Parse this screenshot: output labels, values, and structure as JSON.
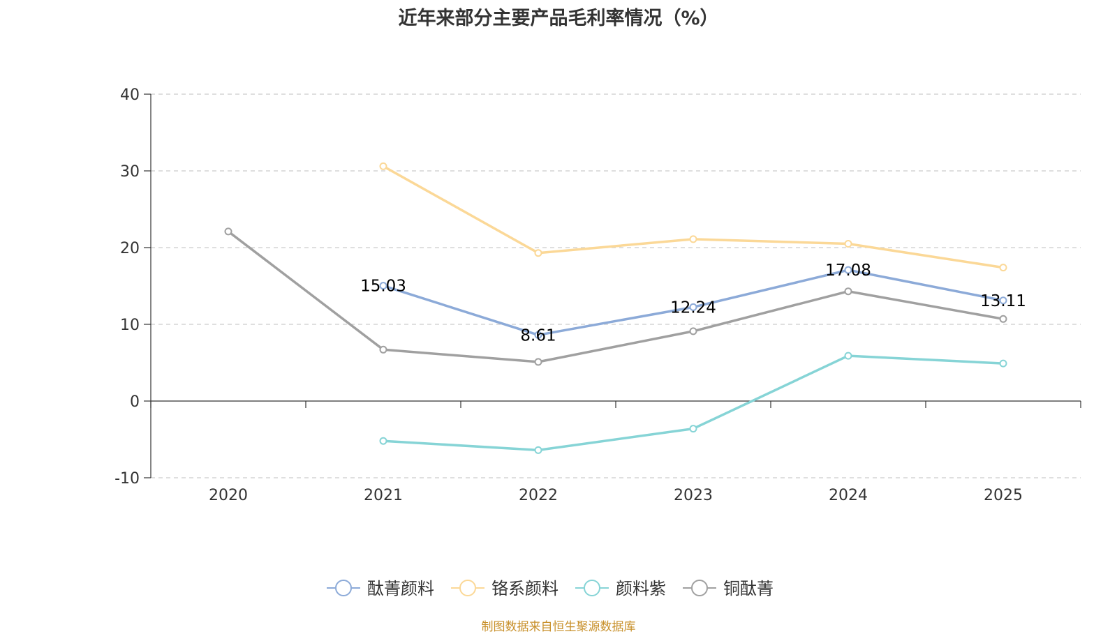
{
  "chart_data": {
    "type": "line",
    "title": "近年来部分主要产品毛利率情况（%）",
    "xlabel": "",
    "ylabel": "",
    "categories": [
      "2020",
      "2021",
      "2022",
      "2023",
      "2024",
      "2025"
    ],
    "ylim": [
      -10,
      40
    ],
    "yticks": [
      -10,
      0,
      10,
      20,
      30,
      40
    ],
    "grid": true,
    "legend_position": "bottom",
    "series": [
      {
        "name": "酞菁颜料",
        "color": "#8caad8",
        "values": [
          null,
          15.03,
          8.61,
          12.24,
          17.08,
          13.11
        ],
        "labels": [
          "",
          "15.03",
          "8.61",
          "12.24",
          "17.08",
          "13.11"
        ]
      },
      {
        "name": "铬系颜料",
        "color": "#fbd897",
        "values": [
          null,
          30.6,
          19.3,
          21.1,
          20.5,
          17.4
        ]
      },
      {
        "name": "颜料紫",
        "color": "#86d4d6",
        "values": [
          null,
          -5.2,
          -6.4,
          -3.6,
          5.9,
          4.9
        ]
      },
      {
        "name": "铜酞菁",
        "color": "#a0a0a0",
        "values": [
          22.1,
          6.7,
          5.1,
          9.1,
          14.3,
          10.7
        ]
      }
    ]
  },
  "footer": {
    "source": "制图数据来自恒生聚源数据库"
  }
}
